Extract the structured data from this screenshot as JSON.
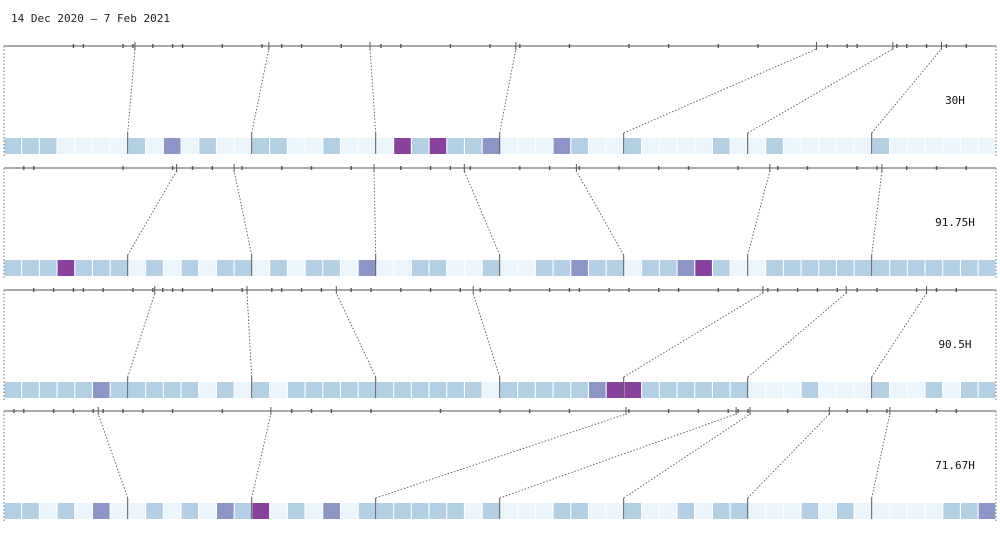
{
  "title": "14 Dec 2020 – 7 Feb 2021",
  "chart_data": {
    "type": "heatmap",
    "title": "14 Dec 2020 – 7 Feb 2021",
    "start_date": "2020-12-14",
    "end_date": "2021-02-07",
    "weeks": 8,
    "days_per_week": 7,
    "color_scale": [
      "#eaf6fb",
      "#b3cfe3",
      "#8c96c6",
      "#88419d"
    ],
    "rows": [
      {
        "total_label": "30H",
        "levels": [
          1,
          1,
          1,
          0,
          0,
          0,
          0,
          1,
          0,
          2,
          0,
          1,
          0,
          0,
          1,
          1,
          0,
          0,
          1,
          0,
          0,
          0,
          3,
          1,
          3,
          1,
          1,
          2,
          0,
          0,
          0,
          2,
          1,
          0,
          0,
          1,
          0,
          0,
          0,
          0,
          1,
          0,
          0,
          1,
          0,
          0,
          0,
          0,
          0,
          1,
          0,
          0,
          0,
          0,
          0,
          0
        ],
        "ticks": [
          0.07,
          0.08,
          0.12,
          0.13,
          0.15,
          0.17,
          0.18,
          0.22,
          0.26,
          0.28,
          0.3,
          0.34,
          0.38,
          0.4,
          0.45,
          0.49,
          0.52,
          0.57,
          0.63,
          0.67,
          0.72,
          0.76,
          0.83,
          0.85,
          0.86,
          0.9,
          0.91,
          0.93,
          0.95,
          0.97
        ],
        "week_marks": [
          0.132,
          0.267,
          0.369,
          0.516,
          0.819,
          0.896,
          0.945
        ]
      },
      {
        "total_label": "91.75H",
        "levels": [
          1,
          1,
          1,
          3,
          1,
          1,
          1,
          0,
          1,
          0,
          1,
          0,
          1,
          1,
          0,
          1,
          0,
          1,
          1,
          0,
          2,
          0,
          0,
          1,
          1,
          0,
          0,
          1,
          0,
          0,
          1,
          1,
          2,
          1,
          1,
          0,
          1,
          1,
          2,
          3,
          1,
          0,
          0,
          1,
          1,
          1,
          1,
          1,
          1,
          1,
          1,
          1,
          1,
          1,
          1,
          1
        ],
        "ticks": [
          0.02,
          0.03,
          0.12,
          0.17,
          0.19,
          0.21,
          0.24,
          0.28,
          0.31,
          0.35,
          0.4,
          0.43,
          0.45,
          0.47,
          0.52,
          0.55,
          0.58,
          0.62,
          0.66,
          0.69,
          0.74,
          0.78,
          0.81,
          0.86,
          0.88,
          0.91,
          0.94,
          0.97
        ],
        "week_marks": [
          0.174,
          0.232,
          0.373,
          0.464,
          0.577,
          0.772,
          0.885
        ]
      },
      {
        "total_label": "90.5H",
        "levels": [
          1,
          1,
          1,
          1,
          1,
          2,
          1,
          1,
          1,
          1,
          1,
          0,
          1,
          0,
          1,
          0,
          1,
          1,
          1,
          1,
          1,
          1,
          1,
          1,
          1,
          1,
          1,
          0,
          1,
          1,
          1,
          1,
          1,
          2,
          3,
          3,
          1,
          1,
          1,
          1,
          1,
          1,
          0,
          0,
          0,
          1,
          0,
          0,
          0,
          1,
          0,
          0,
          1,
          0,
          1,
          1
        ],
        "ticks": [
          0.03,
          0.05,
          0.07,
          0.08,
          0.1,
          0.13,
          0.15,
          0.16,
          0.17,
          0.18,
          0.21,
          0.24,
          0.27,
          0.28,
          0.3,
          0.32,
          0.35,
          0.37,
          0.4,
          0.43,
          0.46,
          0.48,
          0.51,
          0.55,
          0.57,
          0.58,
          0.61,
          0.63,
          0.66,
          0.68,
          0.72,
          0.74,
          0.77,
          0.78,
          0.8,
          0.82,
          0.84,
          0.86,
          0.88,
          0.92,
          0.94,
          0.96
        ],
        "week_marks": [
          0.152,
          0.245,
          0.335,
          0.473,
          0.765,
          0.849,
          0.93
        ]
      },
      {
        "total_label": "71.67H",
        "levels": [
          1,
          1,
          0,
          1,
          0,
          2,
          0,
          0,
          1,
          0,
          1,
          0,
          2,
          1,
          3,
          0,
          1,
          0,
          2,
          0,
          1,
          1,
          1,
          1,
          1,
          1,
          0,
          1,
          0,
          0,
          0,
          1,
          1,
          0,
          0,
          1,
          0,
          0,
          1,
          0,
          1,
          1,
          0,
          0,
          0,
          1,
          0,
          1,
          0,
          0,
          0,
          0,
          0,
          1,
          1,
          2
        ],
        "ticks": [
          0.01,
          0.02,
          0.05,
          0.07,
          0.09,
          0.1,
          0.12,
          0.14,
          0.17,
          0.22,
          0.29,
          0.31,
          0.33,
          0.37,
          0.44,
          0.5,
          0.53,
          0.57,
          0.63,
          0.67,
          0.7,
          0.73,
          0.74,
          0.75,
          0.79,
          0.85,
          0.87,
          0.89,
          0.94,
          0.96
        ],
        "week_marks": [
          0.095,
          0.269,
          0.627,
          0.738,
          0.752,
          0.832,
          0.893
        ]
      }
    ]
  }
}
